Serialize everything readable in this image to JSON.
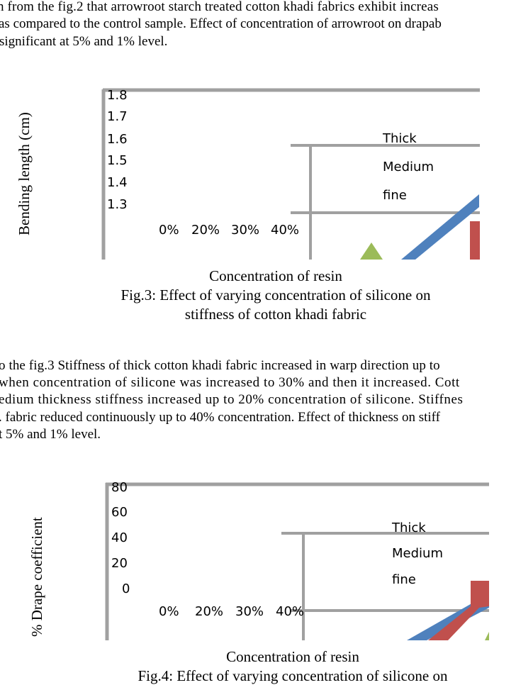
{
  "paragraph_1": {
    "lines": [
      "n from the fig.2 that arrowroot starch treated cotton khadi fabrics exhibit increas",
      "as compared to the control sample. Effect of concentration of arrowroot on drapab",
      "significant at 5% and 1% level."
    ]
  },
  "figure_3": {
    "caption_line1": "Fig.3: Effect of varying concentration of silicone on",
    "caption_line2": "stiffness of cotton khadi fabric"
  },
  "paragraph_2": {
    "lines": [
      "o the fig.3 Stiffness of thick cotton khadi fabric increased in warp direction up to",
      "when concentration of silicone was increased to 30% and then it increased. Cott",
      "edium thickness stiffness increased up to 20% concentration of silicone. Stiffnes",
      ". fabric reduced continuously up to 40% concentration. Effect of thickness on stiff",
      "t 5% and 1% level."
    ]
  },
  "figure_4": {
    "caption_line1": "Fig.4: Effect of varying concentration of silicone on"
  },
  "chart_data": [
    {
      "type": "line",
      "ylabel": "Bending length (cm)",
      "xlabel": "Concentration of resin",
      "y_ticks": [
        "1.8",
        "1.7",
        "1.6",
        "1.5",
        "1.4",
        "1.3"
      ],
      "categories": [
        "0%",
        "20%",
        "30%",
        "40%"
      ],
      "legend": [
        "Thick",
        "Medium",
        "fine"
      ],
      "colors": {
        "Thick": "#4f81bd",
        "Medium": "#c0504d",
        "fine": "#9bbb59",
        "axis": "#a0a0a0"
      }
    },
    {
      "type": "line",
      "ylabel": "% Drape coefficient",
      "xlabel": "Concentration of resin",
      "y_ticks": [
        "80",
        "60",
        "40",
        "20",
        "0"
      ],
      "categories": [
        "0%",
        "20%",
        "30%",
        "40%"
      ],
      "legend": [
        "Thick",
        "Medium",
        "fine"
      ],
      "colors": {
        "Thick": "#4f81bd",
        "Medium": "#c0504d",
        "fine": "#9bbb59",
        "axis": "#a0a0a0"
      }
    }
  ]
}
